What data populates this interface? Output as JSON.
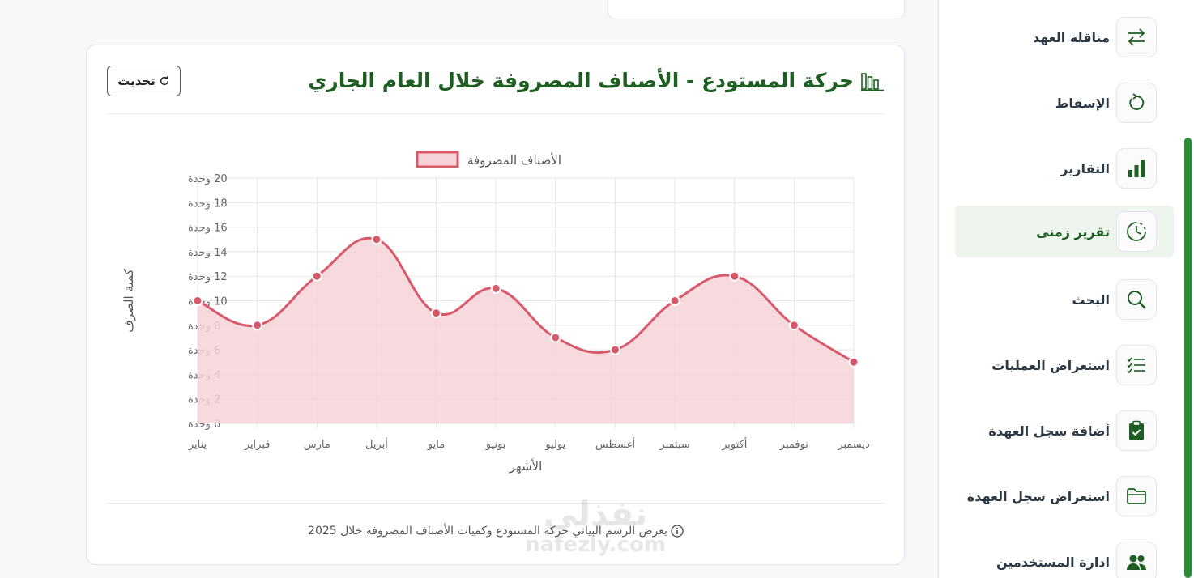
{
  "chart_card": {
    "title": "حركة المستودع - الأصناف المصروفة خلال العام الجاري",
    "refresh_label": "تحديث",
    "footer_note": "يعرض الرسم البياني حركة المستودع وكميات الأصناف المصروفة خلال 2025"
  },
  "watermark": {
    "arabic": "نفذلي",
    "latin": "nafezly.com"
  },
  "sidebar": {
    "items": [
      {
        "label": "مناقلة العهد",
        "icon": "arrows-exchange-icon"
      },
      {
        "label": "الإسقاط",
        "icon": "rotate-icon"
      },
      {
        "label": "التقارير",
        "icon": "bar-chart-icon"
      },
      {
        "label": "تقرير زمنى",
        "icon": "clock-icon",
        "active": true
      },
      {
        "label": "البحث",
        "icon": "search-icon"
      },
      {
        "label": "استعراض العمليات",
        "icon": "checklist-icon"
      },
      {
        "label": "أضافة سجل العهدة",
        "icon": "clipboard-check-icon"
      },
      {
        "label": "استعراض سجل العهدة",
        "icon": "folder-icon"
      },
      {
        "label": "ادارة المستخدمين",
        "icon": "users-icon"
      }
    ]
  },
  "colors": {
    "accent": "#1e5e22",
    "line": "#d9596b",
    "fill": "#f6d3d8"
  },
  "chart_data": {
    "type": "area",
    "categories": [
      "يناير",
      "فبراير",
      "مارس",
      "أبريل",
      "مايو",
      "يونيو",
      "يوليو",
      "أغسطس",
      "سبتمبر",
      "أكتوبر",
      "نوفمبر",
      "ديسمبر"
    ],
    "series": [
      {
        "name": "الأصناف المصروفة",
        "values": [
          10,
          8,
          12,
          15,
          9,
          11,
          7,
          6,
          10,
          12,
          8,
          5
        ]
      }
    ],
    "xlabel": "الأشهر",
    "ylabel": "كمية الصرف",
    "ylim": [
      0,
      20
    ],
    "ytick_values": [
      0,
      2,
      4,
      6,
      8,
      10,
      12,
      14,
      16,
      18,
      20
    ],
    "ytick_suffix": "وحدة",
    "grid": true,
    "legend_position": "top-center"
  }
}
